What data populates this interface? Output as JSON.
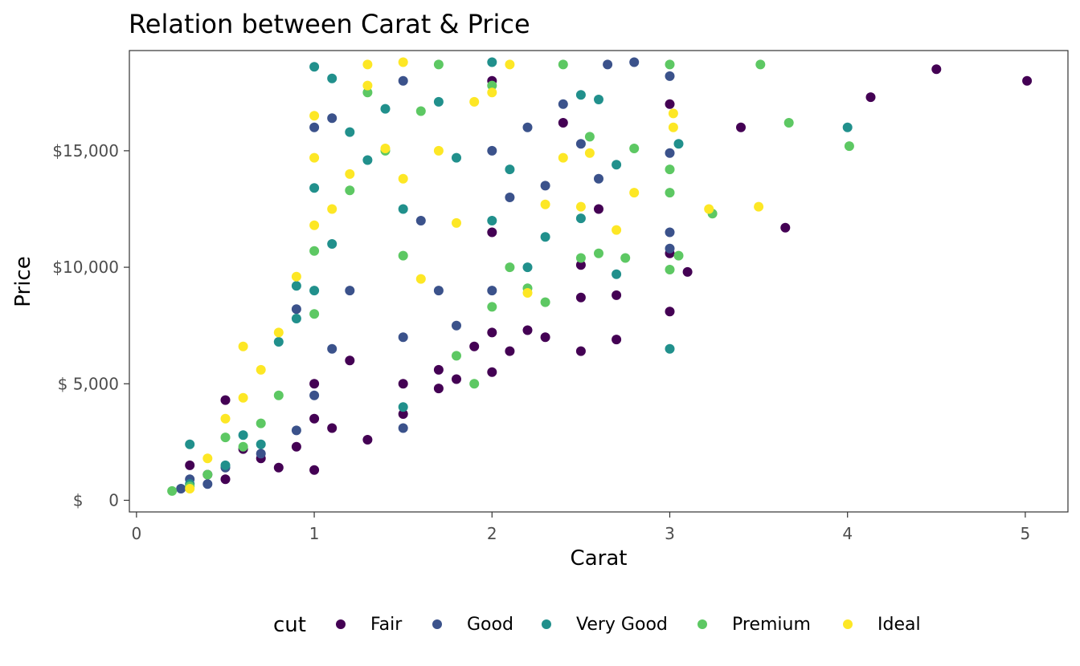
{
  "chart_data": {
    "type": "scatter",
    "title": "Relation between Carat & Price",
    "xlabel": "Carat",
    "ylabel": "Price",
    "xlim": [
      -0.04,
      5.24
    ],
    "ylim": [
      -500,
      19300
    ],
    "x_ticks": [
      0,
      1,
      2,
      3,
      4,
      5
    ],
    "x_tick_labels": [
      "0",
      "1",
      "2",
      "3",
      "4",
      "5"
    ],
    "y_ticks": [
      0,
      5000,
      10000,
      15000
    ],
    "y_tick_labels": [
      "$     0",
      "$ 5,000",
      "$10,000",
      "$15,000"
    ],
    "grid": false,
    "legend": {
      "title": "cut",
      "position": "bottom",
      "entries": [
        {
          "name": "Fair",
          "color": "#440154"
        },
        {
          "name": "Good",
          "color": "#3b528b"
        },
        {
          "name": "Very Good",
          "color": "#21908c"
        },
        {
          "name": "Premium",
          "color": "#5dc863"
        },
        {
          "name": "Ideal",
          "color": "#fde725"
        }
      ]
    },
    "series": [
      {
        "name": "Fair",
        "color": "#440154",
        "points": [
          [
            0.3,
            1500
          ],
          [
            0.4,
            1100
          ],
          [
            0.5,
            4300
          ],
          [
            0.5,
            900
          ],
          [
            0.6,
            2200
          ],
          [
            0.7,
            1800
          ],
          [
            0.8,
            1400
          ],
          [
            0.9,
            2300
          ],
          [
            1.0,
            3500
          ],
          [
            1.0,
            1300
          ],
          [
            1.0,
            5000
          ],
          [
            1.1,
            3100
          ],
          [
            1.2,
            6000
          ],
          [
            1.3,
            2600
          ],
          [
            1.5,
            5000
          ],
          [
            1.5,
            3700
          ],
          [
            1.7,
            5600
          ],
          [
            1.7,
            4800
          ],
          [
            1.8,
            5200
          ],
          [
            1.9,
            6600
          ],
          [
            2.0,
            7200
          ],
          [
            2.0,
            5500
          ],
          [
            2.0,
            11500
          ],
          [
            2.0,
            18000
          ],
          [
            2.1,
            6400
          ],
          [
            2.2,
            7300
          ],
          [
            2.3,
            7000
          ],
          [
            2.4,
            16200
          ],
          [
            2.5,
            6400
          ],
          [
            2.5,
            8700
          ],
          [
            2.5,
            10100
          ],
          [
            2.6,
            12500
          ],
          [
            2.7,
            6900
          ],
          [
            2.7,
            8800
          ],
          [
            3.0,
            8100
          ],
          [
            3.0,
            17000
          ],
          [
            3.0,
            10600
          ],
          [
            3.1,
            9800
          ],
          [
            3.4,
            16000
          ],
          [
            3.65,
            11700
          ],
          [
            4.13,
            17300
          ],
          [
            4.5,
            18500
          ],
          [
            5.01,
            18000
          ]
        ]
      },
      {
        "name": "Good",
        "color": "#3b528b",
        "points": [
          [
            0.25,
            500
          ],
          [
            0.3,
            900
          ],
          [
            0.4,
            700
          ],
          [
            0.5,
            1400
          ],
          [
            0.7,
            2000
          ],
          [
            0.9,
            3000
          ],
          [
            0.9,
            8200
          ],
          [
            1.0,
            4500
          ],
          [
            1.0,
            16000
          ],
          [
            1.1,
            6500
          ],
          [
            1.1,
            16400
          ],
          [
            1.2,
            9000
          ],
          [
            1.5,
            7000
          ],
          [
            1.5,
            3100
          ],
          [
            1.5,
            18000
          ],
          [
            1.6,
            12000
          ],
          [
            1.7,
            9000
          ],
          [
            1.8,
            7500
          ],
          [
            2.0,
            9000
          ],
          [
            2.0,
            15000
          ],
          [
            2.1,
            13000
          ],
          [
            2.2,
            16000
          ],
          [
            2.3,
            13500
          ],
          [
            2.4,
            17000
          ],
          [
            2.5,
            15300
          ],
          [
            2.6,
            13800
          ],
          [
            2.65,
            18700
          ],
          [
            2.8,
            18800
          ],
          [
            3.0,
            11500
          ],
          [
            3.0,
            14900
          ],
          [
            3.0,
            18200
          ],
          [
            3.0,
            10800
          ]
        ]
      },
      {
        "name": "Very Good",
        "color": "#21908c",
        "points": [
          [
            0.3,
            2400
          ],
          [
            0.3,
            700
          ],
          [
            0.5,
            1500
          ],
          [
            0.6,
            2800
          ],
          [
            0.7,
            2400
          ],
          [
            0.8,
            6800
          ],
          [
            0.9,
            7800
          ],
          [
            0.9,
            9200
          ],
          [
            1.0,
            9000
          ],
          [
            1.0,
            13400
          ],
          [
            1.0,
            18600
          ],
          [
            1.1,
            11000
          ],
          [
            1.1,
            18100
          ],
          [
            1.2,
            15800
          ],
          [
            1.3,
            14600
          ],
          [
            1.4,
            16800
          ],
          [
            1.5,
            12500
          ],
          [
            1.5,
            4000
          ],
          [
            1.7,
            17100
          ],
          [
            1.8,
            14700
          ],
          [
            2.0,
            12000
          ],
          [
            2.0,
            18800
          ],
          [
            2.1,
            14200
          ],
          [
            2.2,
            10000
          ],
          [
            2.3,
            11300
          ],
          [
            2.5,
            12100
          ],
          [
            2.5,
            17400
          ],
          [
            2.6,
            17200
          ],
          [
            2.7,
            9700
          ],
          [
            2.7,
            14400
          ],
          [
            3.0,
            6500
          ],
          [
            3.05,
            15300
          ],
          [
            4.0,
            16000
          ]
        ]
      },
      {
        "name": "Premium",
        "color": "#5dc863",
        "points": [
          [
            0.2,
            400
          ],
          [
            0.3,
            600
          ],
          [
            0.4,
            1100
          ],
          [
            0.5,
            2700
          ],
          [
            0.6,
            2300
          ],
          [
            0.7,
            3300
          ],
          [
            0.8,
            4500
          ],
          [
            1.0,
            8000
          ],
          [
            1.0,
            10700
          ],
          [
            1.2,
            13300
          ],
          [
            1.3,
            17500
          ],
          [
            1.4,
            15000
          ],
          [
            1.5,
            10500
          ],
          [
            1.6,
            16700
          ],
          [
            1.7,
            18700
          ],
          [
            1.8,
            6200
          ],
          [
            1.9,
            5000
          ],
          [
            2.0,
            8300
          ],
          [
            2.0,
            17800
          ],
          [
            2.1,
            10000
          ],
          [
            2.2,
            9100
          ],
          [
            2.3,
            8500
          ],
          [
            2.4,
            18700
          ],
          [
            2.5,
            10400
          ],
          [
            2.55,
            15600
          ],
          [
            2.6,
            10600
          ],
          [
            2.75,
            10400
          ],
          [
            2.8,
            15100
          ],
          [
            3.0,
            13200
          ],
          [
            3.0,
            9900
          ],
          [
            3.0,
            14200
          ],
          [
            3.0,
            18700
          ],
          [
            3.05,
            10500
          ],
          [
            3.24,
            12300
          ],
          [
            3.51,
            18700
          ],
          [
            3.67,
            16200
          ],
          [
            4.01,
            15200
          ]
        ]
      },
      {
        "name": "Ideal",
        "color": "#fde725",
        "points": [
          [
            0.3,
            500
          ],
          [
            0.4,
            1800
          ],
          [
            0.5,
            3500
          ],
          [
            0.6,
            4400
          ],
          [
            0.6,
            6600
          ],
          [
            0.7,
            5600
          ],
          [
            0.8,
            7200
          ],
          [
            0.9,
            9600
          ],
          [
            1.0,
            11800
          ],
          [
            1.0,
            14700
          ],
          [
            1.0,
            16500
          ],
          [
            1.1,
            12500
          ],
          [
            1.2,
            14000
          ],
          [
            1.3,
            17800
          ],
          [
            1.3,
            18700
          ],
          [
            1.4,
            15100
          ],
          [
            1.5,
            13800
          ],
          [
            1.5,
            18800
          ],
          [
            1.6,
            9500
          ],
          [
            1.7,
            15000
          ],
          [
            1.8,
            11900
          ],
          [
            1.9,
            17100
          ],
          [
            2.0,
            17500
          ],
          [
            2.1,
            18700
          ],
          [
            2.2,
            8900
          ],
          [
            2.3,
            12700
          ],
          [
            2.4,
            14700
          ],
          [
            2.5,
            12600
          ],
          [
            2.55,
            14900
          ],
          [
            2.7,
            11600
          ],
          [
            2.8,
            13200
          ],
          [
            3.02,
            16000
          ],
          [
            3.02,
            16600
          ],
          [
            3.22,
            12500
          ],
          [
            3.5,
            12600
          ]
        ]
      }
    ]
  }
}
